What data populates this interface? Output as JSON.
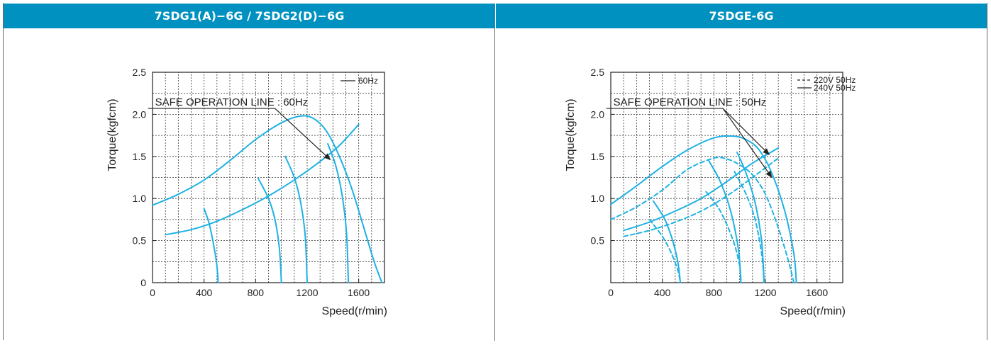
{
  "panels": [
    {
      "header": "7SDG1(A)−6G / 7SDG2(D)−6G",
      "chart_data": {
        "type": "line",
        "ylabel": "Torque(kgfcm)",
        "xlabel": "Speed(r/min)",
        "xlim": [
          0,
          1800
        ],
        "ylim": [
          0,
          2.5
        ],
        "x_ticks": [
          "0",
          "400",
          "800",
          "1200",
          "1600"
        ],
        "x_tick_values": [
          0,
          400,
          800,
          1200,
          1600
        ],
        "y_ticks": [
          "0",
          "0.5",
          "1.0",
          "1.5",
          "2.0",
          "2.5"
        ],
        "y_tick_values": [
          0,
          0.5,
          1.0,
          1.5,
          2.0,
          2.5
        ],
        "grid": true,
        "legend": [
          {
            "label": "60Hz",
            "style": "solid"
          }
        ],
        "legend_position": "top-right",
        "annotation": "SAFE OPERATION LINE : 60Hz",
        "annotation_target": [
          1380,
          1.46
        ],
        "annotation_label_anchor": [
          20,
          2.07
        ],
        "annotation_kink": [
          950,
          2.07
        ],
        "series": [
          {
            "style": "solid",
            "points": [
              [
                0,
                0.92
              ],
              [
                200,
                1.05
              ],
              [
                400,
                1.22
              ],
              [
                600,
                1.45
              ],
              [
                800,
                1.7
              ],
              [
                1000,
                1.9
              ],
              [
                1150,
                1.98
              ],
              [
                1250,
                1.95
              ],
              [
                1350,
                1.8
              ],
              [
                1450,
                1.5
              ],
              [
                1550,
                1.1
              ],
              [
                1650,
                0.6
              ],
              [
                1720,
                0.25
              ],
              [
                1780,
                0
              ]
            ]
          },
          {
            "style": "solid",
            "points": [
              [
                100,
                0.57
              ],
              [
                300,
                0.63
              ],
              [
                500,
                0.73
              ],
              [
                700,
                0.87
              ],
              [
                900,
                1.03
              ],
              [
                1100,
                1.22
              ],
              [
                1300,
                1.44
              ],
              [
                1450,
                1.63
              ],
              [
                1600,
                1.88
              ]
            ]
          },
          {
            "style": "solid",
            "points": [
              [
                400,
                0.88
              ],
              [
                440,
                0.7
              ],
              [
                480,
                0.4
              ],
              [
                500,
                0.2
              ],
              [
                510,
                0
              ]
            ]
          },
          {
            "style": "solid",
            "points": [
              [
                820,
                1.24
              ],
              [
                900,
                1.0
              ],
              [
                950,
                0.75
              ],
              [
                985,
                0.4
              ],
              [
                1000,
                0
              ]
            ]
          },
          {
            "style": "solid",
            "points": [
              [
                1030,
                1.5
              ],
              [
                1100,
                1.25
              ],
              [
                1150,
                0.95
              ],
              [
                1185,
                0.55
              ],
              [
                1200,
                0
              ]
            ]
          },
          {
            "style": "solid",
            "points": [
              [
                1360,
                1.65
              ],
              [
                1420,
                1.4
              ],
              [
                1470,
                1.05
              ],
              [
                1505,
                0.6
              ],
              [
                1520,
                0
              ]
            ]
          }
        ]
      }
    },
    {
      "header": "7SDGE-6G",
      "chart_data": {
        "type": "line",
        "ylabel": "Torque(kgfcm)",
        "xlabel": "Speed(r/min)",
        "xlim": [
          0,
          1800
        ],
        "ylim": [
          0,
          2.5
        ],
        "x_ticks": [
          "0",
          "400",
          "800",
          "1200",
          "1600"
        ],
        "x_tick_values": [
          0,
          400,
          800,
          1200,
          1600
        ],
        "y_ticks": [
          "0.5",
          "1.0",
          "1.5",
          "2.0",
          "2.5"
        ],
        "y_tick_values": [
          0.5,
          1.0,
          1.5,
          2.0,
          2.5
        ],
        "grid": true,
        "legend": [
          {
            "label": "220V 50Hz",
            "style": "dashed"
          },
          {
            "label": "240V 50Hz",
            "style": "solid"
          }
        ],
        "legend_position": "top-right",
        "annotation": "SAFE OPERATION LINE : 50Hz",
        "annotation_targets": [
          [
            1230,
            1.52
          ],
          [
            1250,
            1.25
          ]
        ],
        "annotation_label_anchor": [
          20,
          2.07
        ],
        "annotation_kink": [
          870,
          2.07
        ],
        "series": [
          {
            "name": "240V 50Hz",
            "style": "solid",
            "points": [
              [
                0,
                0.93
              ],
              [
                200,
                1.15
              ],
              [
                400,
                1.38
              ],
              [
                600,
                1.58
              ],
              [
                800,
                1.72
              ],
              [
                950,
                1.74
              ],
              [
                1050,
                1.7
              ],
              [
                1150,
                1.58
              ],
              [
                1250,
                1.3
              ],
              [
                1350,
                0.85
              ],
              [
                1420,
                0.35
              ],
              [
                1440,
                0
              ]
            ]
          },
          {
            "name": "240V 50Hz",
            "style": "solid",
            "points": [
              [
                100,
                0.62
              ],
              [
                300,
                0.72
              ],
              [
                500,
                0.85
              ],
              [
                700,
                1.0
              ],
              [
                900,
                1.2
              ],
              [
                1100,
                1.42
              ],
              [
                1300,
                1.6
              ]
            ]
          },
          {
            "name": "240V 50Hz",
            "style": "solid",
            "points": [
              [
                330,
                0.97
              ],
              [
                420,
                0.75
              ],
              [
                480,
                0.5
              ],
              [
                520,
                0.25
              ],
              [
                540,
                0
              ]
            ]
          },
          {
            "name": "240V 50Hz",
            "style": "solid",
            "points": [
              [
                760,
                1.45
              ],
              [
                850,
                1.2
              ],
              [
                930,
                0.85
              ],
              [
                990,
                0.4
              ],
              [
                1010,
                0
              ]
            ]
          },
          {
            "name": "240V 50Hz",
            "style": "solid",
            "points": [
              [
                980,
                1.55
              ],
              [
                1050,
                1.3
              ],
              [
                1120,
                0.95
              ],
              [
                1170,
                0.5
              ],
              [
                1190,
                0
              ]
            ]
          },
          {
            "name": "220V 50Hz",
            "style": "dashed",
            "points": [
              [
                0,
                0.75
              ],
              [
                200,
                0.9
              ],
              [
                400,
                1.1
              ],
              [
                600,
                1.35
              ],
              [
                800,
                1.48
              ],
              [
                900,
                1.47
              ],
              [
                1000,
                1.4
              ],
              [
                1100,
                1.28
              ],
              [
                1200,
                1.05
              ],
              [
                1300,
                0.65
              ],
              [
                1380,
                0.25
              ],
              [
                1420,
                0
              ]
            ]
          },
          {
            "name": "220V 50Hz",
            "style": "dashed",
            "points": [
              [
                100,
                0.55
              ],
              [
                300,
                0.62
              ],
              [
                500,
                0.72
              ],
              [
                700,
                0.85
              ],
              [
                900,
                1.03
              ],
              [
                1100,
                1.25
              ],
              [
                1300,
                1.48
              ]
            ]
          },
          {
            "name": "220V 50Hz",
            "style": "dashed",
            "points": [
              [
                300,
                0.75
              ],
              [
                400,
                0.55
              ],
              [
                470,
                0.35
              ],
              [
                520,
                0.15
              ],
              [
                540,
                0
              ]
            ]
          },
          {
            "name": "220V 50Hz",
            "style": "dashed",
            "points": [
              [
                740,
                1.08
              ],
              [
                850,
                0.85
              ],
              [
                950,
                0.5
              ],
              [
                1000,
                0.2
              ],
              [
                1010,
                0
              ]
            ]
          },
          {
            "name": "220V 50Hz",
            "style": "dashed",
            "points": [
              [
                960,
                1.32
              ],
              [
                1050,
                1.05
              ],
              [
                1120,
                0.75
              ],
              [
                1170,
                0.35
              ],
              [
                1190,
                0
              ]
            ]
          }
        ]
      }
    }
  ],
  "colors": {
    "header_bg": "#0091c0",
    "header_text": "#ffffff",
    "curve": "#1eb2e4",
    "axis": "#222222",
    "grid": "#333333",
    "text": "#222222",
    "annotation": "#222222"
  }
}
